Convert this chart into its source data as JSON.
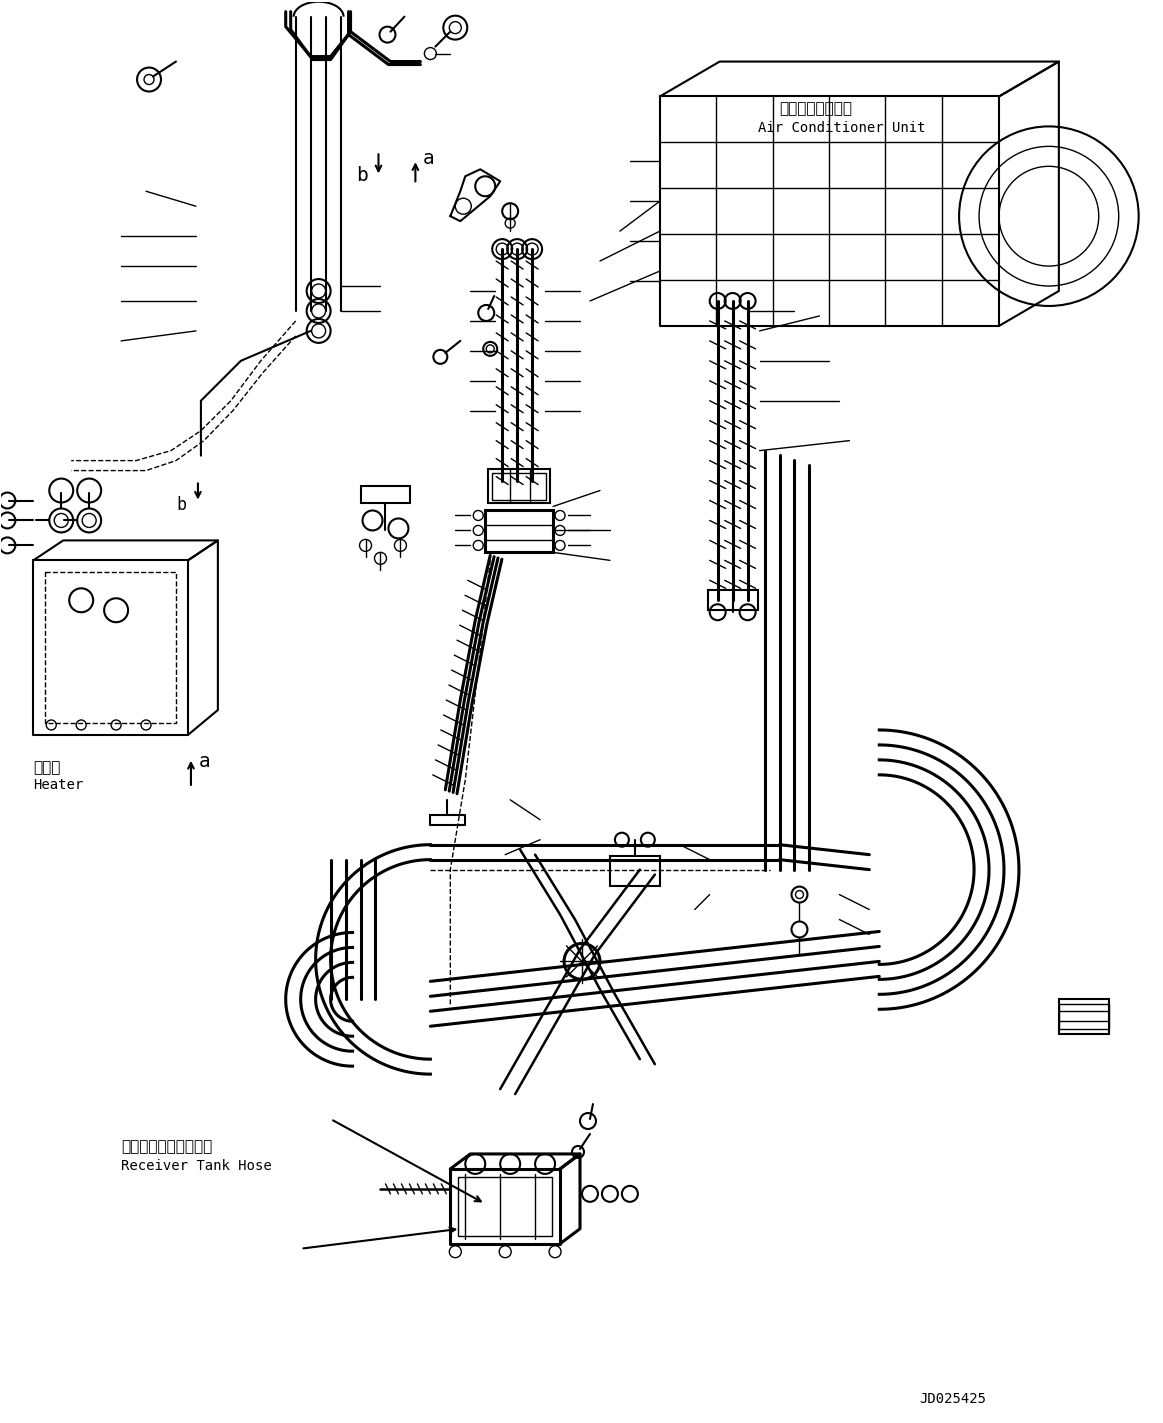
{
  "background_color": "#ffffff",
  "line_color": "#000000",
  "fig_width": 11.63,
  "fig_height": 14.23,
  "dpi": 100,
  "label_ac_unit_jp": "エアコンユニット",
  "label_ac_unit_en": "Air Conditioner Unit",
  "label_heater_jp": "ヒータ",
  "label_heater_en": "Heater",
  "label_receiver_jp": "レシーバタンクホース",
  "label_receiver_en": "Receiver Tank Hose",
  "label_id": "JD025425",
  "label_a": "a",
  "label_b": "b",
  "pipe_lw": 2.2,
  "pipe_lw2": 1.8,
  "thin_lw": 1.0,
  "main_lw": 1.5
}
